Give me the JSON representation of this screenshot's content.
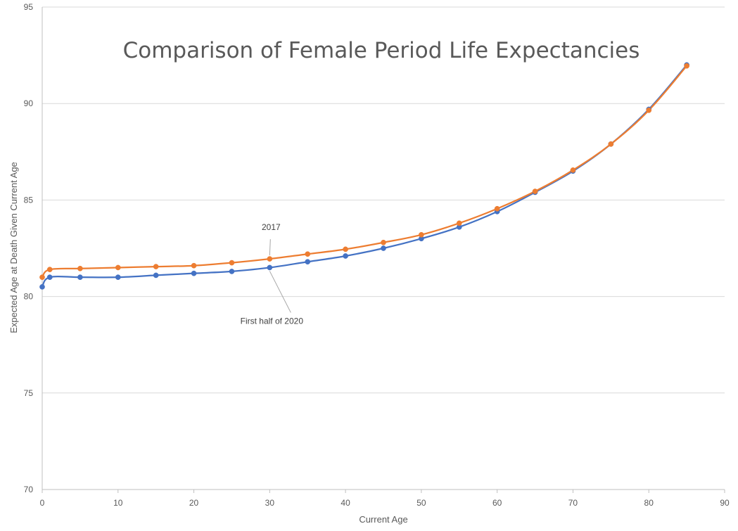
{
  "chart_data": {
    "type": "line",
    "title": "Comparison of Female Period Life Expectancies",
    "xlabel": "Current Age",
    "ylabel": "Expected Age at Death Given Current Age",
    "xlim": [
      0,
      90
    ],
    "ylim": [
      70,
      95
    ],
    "xticks": [
      0,
      10,
      20,
      30,
      40,
      50,
      60,
      70,
      80,
      90
    ],
    "yticks": [
      70,
      75,
      80,
      85,
      90,
      95
    ],
    "grid": true,
    "legend": "none",
    "x": [
      0,
      1,
      5,
      10,
      15,
      20,
      25,
      30,
      35,
      40,
      45,
      50,
      55,
      60,
      65,
      70,
      75,
      80,
      85
    ],
    "series": [
      {
        "name": "First half of 2020",
        "color": "#4472c4",
        "values": [
          80.5,
          81.0,
          81.0,
          81.0,
          81.1,
          81.2,
          81.3,
          81.5,
          81.8,
          82.1,
          82.5,
          83.0,
          83.6,
          84.4,
          85.4,
          86.5,
          87.9,
          89.7,
          92.0
        ]
      },
      {
        "name": "2017",
        "color": "#ed7d31",
        "values": [
          81.0,
          81.4,
          81.45,
          81.5,
          81.55,
          81.6,
          81.75,
          81.95,
          82.2,
          82.45,
          82.8,
          83.2,
          83.8,
          84.55,
          85.45,
          86.55,
          87.9,
          89.65,
          91.95
        ]
      }
    ],
    "annotations": [
      {
        "text": "2017",
        "series": 1,
        "point_index": 7
      },
      {
        "text": "First half of 2020",
        "series": 0,
        "point_index": 7
      }
    ]
  }
}
